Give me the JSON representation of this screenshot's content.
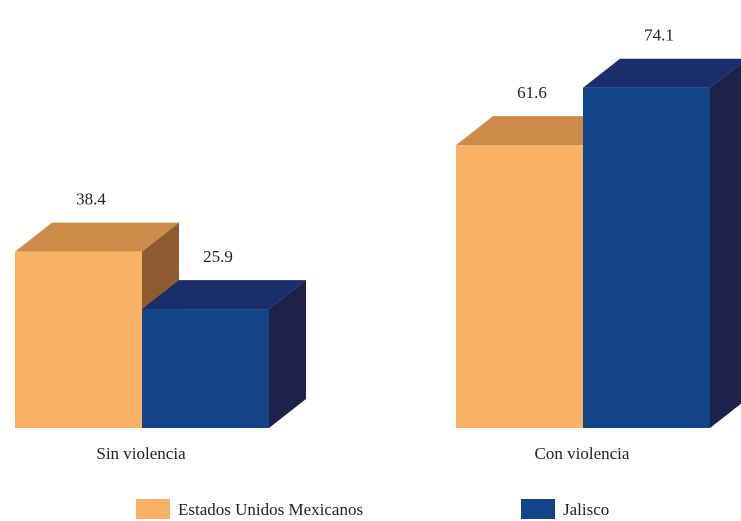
{
  "chart_data": {
    "type": "bar",
    "categories": [
      "Sin violencia",
      "Con violencia"
    ],
    "series": [
      {
        "name": "Estados Unidos Mexicanos",
        "values": [
          38.4,
          61.6
        ],
        "color": "#F9B166"
      },
      {
        "name": "Jalisco",
        "values": [
          25.9,
          74.1
        ],
        "color": "#134488"
      }
    ],
    "data_labels": [
      [
        "38.4",
        "61.6"
      ],
      [
        "25.9",
        "74.1"
      ]
    ],
    "style": "3d",
    "legend_position": "bottom",
    "grid": false,
    "ylim": [
      0,
      74.1
    ]
  }
}
